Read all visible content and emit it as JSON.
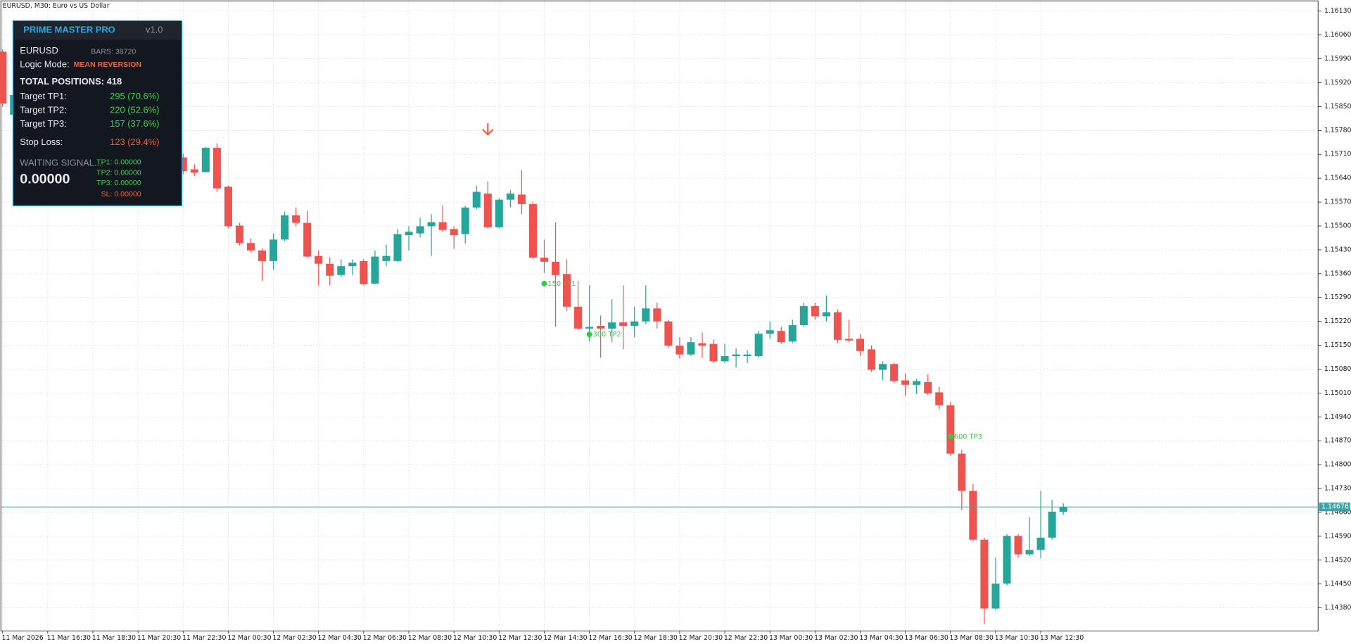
{
  "chart_data": {
    "type": "candlestick",
    "title": "EURUSD, M30:  Euro vs US Dollar",
    "categories": [
      "11 Mar 2026",
      null,
      null,
      null,
      "11 Mar 16:30",
      null,
      null,
      null,
      "11 Mar 18:30",
      null,
      null,
      null,
      "11 Mar 20:30",
      null,
      null,
      null,
      "11 Mar 22:30",
      null,
      null,
      null,
      "12 Mar 00:30",
      null,
      null,
      null,
      "12 Mar 02:30",
      null,
      null,
      null,
      "12 Mar 04:30",
      null,
      null,
      null,
      "12 Mar 06:30",
      null,
      null,
      null,
      "12 Mar 08:30",
      null,
      null,
      null,
      "12 Mar 10:30",
      null,
      null,
      null,
      "12 Mar 12:30",
      null,
      null,
      null,
      "12 Mar 14:30",
      null,
      null,
      null,
      "12 Mar 16:30",
      null,
      null,
      null,
      "12 Mar 18:30",
      null,
      null,
      null,
      "12 Mar 20:30",
      null,
      null,
      null,
      "12 Mar 22:30",
      null,
      null,
      null,
      "13 Mar 00:30",
      null,
      null,
      null,
      "13 Mar 02:30",
      null,
      null,
      null,
      "13 Mar 04:30",
      null,
      null,
      null,
      "13 Mar 06:30",
      null,
      null,
      null,
      "13 Mar 08:30",
      null,
      null,
      null,
      "13 Mar 10:30",
      null,
      null,
      null,
      "13 Mar 12:30",
      null,
      null
    ],
    "open": [
      1.16011,
      1.15826,
      null,
      null,
      null,
      null,
      null,
      null,
      null,
      null,
      null,
      null,
      null,
      null,
      null,
      null,
      1.15701,
      1.15666,
      1.15658,
      1.15729,
      1.15615,
      1.15501,
      1.1545,
      1.15428,
      1.15397,
      1.1546,
      1.15531,
      1.15509,
      1.15412,
      1.15389,
      1.15356,
      1.15382,
      1.15397,
      1.15331,
      1.15397,
      1.15397,
      1.15473,
      1.15478,
      1.15499,
      1.15511,
      1.15491,
      1.15476,
      1.15554,
      1.15595,
      1.15496,
      1.15577,
      1.15592,
      1.15564,
      1.15407,
      1.15395,
      1.15359,
      1.15263,
      1.15199,
      1.15207,
      1.15199,
      1.15217,
      1.15207,
      1.1522,
      1.15258,
      1.1522,
      1.15149,
      1.15123,
      1.15156,
      1.15154,
      1.15103,
      1.15118,
      1.15118,
      1.15118,
      1.15184,
      1.15192,
      1.15161,
      1.15209,
      1.15265,
      1.15235,
      1.15247,
      1.15169,
      1.15169,
      1.15138,
      1.15078,
      1.15095,
      1.15047,
      1.15034,
      1.15042,
      1.15012,
      1.14974,
      1.14832,
      1.14723,
      1.1458,
      1.14378,
      1.14451,
      1.14591,
      1.14537,
      1.1455,
      1.14586,
      1.14662
    ],
    "high": [
      1.16018,
      1.1589,
      null,
      null,
      null,
      null,
      null,
      null,
      null,
      null,
      null,
      null,
      null,
      null,
      null,
      null,
      1.15712,
      1.15681,
      1.15732,
      1.15742,
      1.15618,
      1.15509,
      1.15463,
      1.15435,
      1.15478,
      1.15542,
      1.15554,
      1.15544,
      1.15428,
      1.15407,
      1.15402,
      1.15402,
      1.15402,
      1.15428,
      1.15445,
      1.15491,
      1.15499,
      1.15524,
      1.15534,
      1.15559,
      1.15499,
      1.15559,
      1.15618,
      1.1563,
      1.15582,
      1.15605,
      1.15663,
      1.15572,
      1.1546,
      1.15511,
      1.15402,
      1.15339,
      1.15326,
      1.15237,
      1.15285,
      1.15326,
      1.15263,
      1.15326,
      1.15275,
      1.15225,
      1.15174,
      1.15174,
      1.15187,
      1.15166,
      1.15154,
      1.15141,
      1.15136,
      1.15192,
      1.1522,
      1.15204,
      1.15225,
      1.15275,
      1.15275,
      1.15296,
      1.15255,
      1.15225,
      1.15182,
      1.15149,
      1.15103,
      1.151,
      1.15067,
      1.15052,
      1.15065,
      1.15029,
      1.14984,
      1.14844,
      1.14743,
      1.14586,
      1.14527,
      1.14596,
      1.14596,
      1.14646,
      1.14723,
      1.14697,
      1.14687
    ],
    "low": [
      1.1585,
      1.1582,
      null,
      null,
      null,
      null,
      null,
      null,
      null,
      null,
      null,
      null,
      null,
      null,
      null,
      null,
      1.15651,
      1.15646,
      1.15656,
      1.156,
      1.15493,
      1.15443,
      1.15422,
      1.15339,
      1.15372,
      1.15455,
      1.15499,
      1.15407,
      1.15326,
      1.15326,
      1.15351,
      1.15356,
      1.15326,
      1.15329,
      1.15382,
      1.15395,
      1.15428,
      1.15466,
      1.15412,
      1.15483,
      1.15433,
      1.15448,
      1.15549,
      1.15493,
      1.15493,
      1.15554,
      1.15534,
      1.15402,
      1.15362,
      1.15204,
      1.1525,
      1.15194,
      1.15161,
      1.15113,
      1.15159,
      1.15138,
      1.15174,
      1.15212,
      1.15199,
      1.15143,
      1.15111,
      1.15118,
      1.15113,
      1.15098,
      1.15098,
      1.15085,
      1.15098,
      1.15113,
      1.15169,
      1.15154,
      1.15156,
      1.15204,
      1.15225,
      1.1522,
      1.15156,
      1.15159,
      1.15118,
      1.15072,
      1.15047,
      1.1504,
      1.15001,
      1.15007,
      1.15004,
      1.14963,
      1.14826,
      1.14667,
      1.14575,
      1.14332,
      1.14373,
      1.14446,
      1.14527,
      1.14532,
      1.14525,
      1.1458,
      1.14652
    ],
    "close": [
      1.15859,
      1.15884,
      null,
      null,
      null,
      null,
      null,
      null,
      null,
      null,
      null,
      null,
      null,
      null,
      null,
      null,
      1.15661,
      1.15656,
      1.15729,
      1.1561,
      1.15499,
      1.1545,
      1.15428,
      1.15397,
      1.1546,
      1.15531,
      1.15509,
      1.1541,
      1.15389,
      1.15354,
      1.15382,
      1.15392,
      1.15329,
      1.1541,
      1.15412,
      1.15476,
      1.15483,
      1.15499,
      1.15511,
      1.15488,
      1.15473,
      1.15554,
      1.156,
      1.15496,
      1.15577,
      1.15595,
      1.15564,
      1.15407,
      1.15395,
      1.15356,
      1.15263,
      1.15199,
      1.15204,
      1.15199,
      1.15217,
      1.15207,
      1.1522,
      1.15258,
      1.1522,
      1.15149,
      1.15123,
      1.15159,
      1.15149,
      1.15103,
      1.15118,
      1.15123,
      1.15123,
      1.15184,
      1.15194,
      1.15159,
      1.15209,
      1.15265,
      1.15235,
      1.15247,
      1.15166,
      1.15164,
      1.15133,
      1.15078,
      1.15095,
      1.15045,
      1.15034,
      1.15045,
      1.15009,
      1.14974,
      1.14832,
      1.14723,
      1.1458,
      1.14378,
      1.14451,
      1.14591,
      1.14537,
      1.1455,
      1.14586,
      1.14662,
      1.14676
    ],
    "up_color": "#26a69a",
    "down_color": "#ef5350",
    "ylim": [
      1.14312,
      1.1616
    ],
    "yticks": [
      {
        "value": 1.1613,
        "label": "1.16130"
      },
      {
        "value": 1.1606,
        "label": "1.16060"
      },
      {
        "value": 1.1599,
        "label": "1.15990"
      },
      {
        "value": 1.1592,
        "label": "1.15920"
      },
      {
        "value": 1.1585,
        "label": "1.15850"
      },
      {
        "value": 1.1578,
        "label": "1.15780"
      },
      {
        "value": 1.1571,
        "label": "1.15710"
      },
      {
        "value": 1.1564,
        "label": "1.15640"
      },
      {
        "value": 1.1557,
        "label": "1.15570"
      },
      {
        "value": 1.155,
        "label": "1.15500"
      },
      {
        "value": 1.1543,
        "label": "1.15430"
      },
      {
        "value": 1.1536,
        "label": "1.15360"
      },
      {
        "value": 1.1529,
        "label": "1.15290"
      },
      {
        "value": 1.1522,
        "label": "1.15220"
      },
      {
        "value": 1.1515,
        "label": "1.15150"
      },
      {
        "value": 1.1508,
        "label": "1.15080"
      },
      {
        "value": 1.1501,
        "label": "1.15010"
      },
      {
        "value": 1.1494,
        "label": "1.14940"
      },
      {
        "value": 1.1487,
        "label": "1.14870"
      },
      {
        "value": 1.148,
        "label": "1.14800"
      },
      {
        "value": 1.1473,
        "label": "1.14730"
      },
      {
        "value": 1.1466,
        "label": "1.14660"
      },
      {
        "value": 1.1459,
        "label": "1.14590"
      },
      {
        "value": 1.1452,
        "label": "1.14520"
      },
      {
        "value": 1.1445,
        "label": "1.14450"
      },
      {
        "value": 1.1438,
        "label": "1.14380"
      }
    ],
    "grid": true,
    "current_price": 1.14676,
    "price_line_color": "#3aa5a8",
    "annotations": [
      {
        "label": "150 TP1",
        "bar": 48,
        "price": 1.15331,
        "color": "#2ecc40"
      },
      {
        "label": "300 TP2",
        "bar": 52,
        "price": 1.15182,
        "color": "#2ecc40"
      },
      {
        "label": "600 TP3",
        "bar": 84,
        "price": 1.14882,
        "color": "#2ecc40"
      }
    ],
    "signals": [
      {
        "bar": 43,
        "price": 1.15783,
        "direction": "down",
        "color": "#f0603c"
      }
    ]
  },
  "panel": {
    "title": "PRIME MASTER PRO",
    "version": "v1.0",
    "symbol": "EURUSD",
    "bars": "BARS: 38720",
    "mode_label": "Logic Mode:",
    "mode": "MEAN REVERSION",
    "total": "TOTAL POSITIONS: 418",
    "rows": [
      {
        "label": "Target TP1:",
        "value": "295 (70.6%)"
      },
      {
        "label": "Target TP2:",
        "value": "220 (52.6%)"
      },
      {
        "label": "Target TP3:",
        "value": "157 (37.6%)"
      },
      {
        "label": "Stop Loss:",
        "value": "123 (29.4%)"
      }
    ],
    "status": "WAITING SIGNAL...",
    "price": "0.00000",
    "levels": [
      "TP1: 0.00000",
      "TP2: 0.00000",
      "TP3: 0.00000",
      "SL:  0.00000"
    ]
  }
}
